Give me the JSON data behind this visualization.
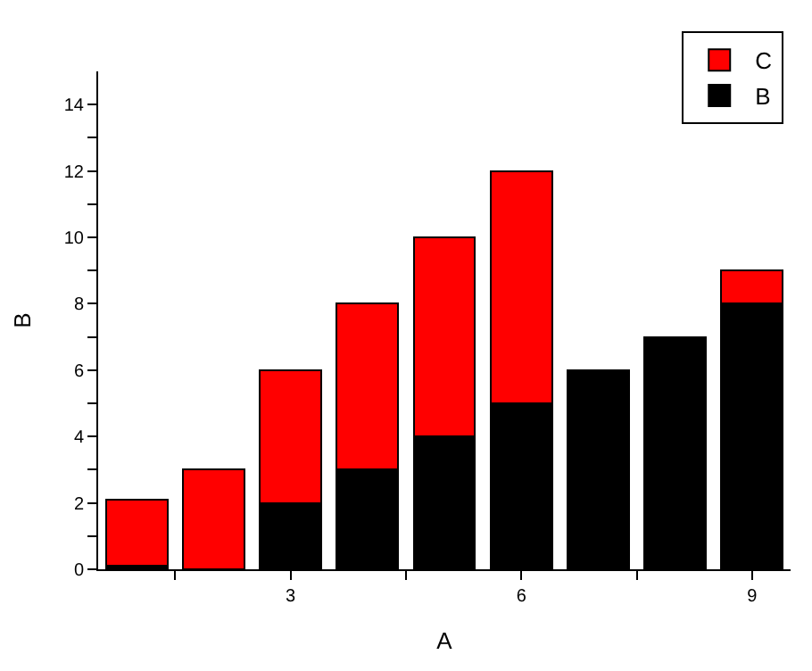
{
  "chart_data": {
    "type": "bar",
    "stacked": true,
    "xlabel": "A",
    "ylabel": "B",
    "x": [
      1,
      2,
      3,
      4,
      5,
      6,
      7,
      8,
      9
    ],
    "series": [
      {
        "name": "B",
        "color": "#000000",
        "values": [
          0.1,
          0,
          2,
          3,
          4,
          5,
          6,
          7,
          8
        ]
      },
      {
        "name": "C",
        "color": "#ff0000",
        "values": [
          2,
          3,
          4,
          5,
          6,
          7,
          null,
          null,
          1
        ]
      }
    ],
    "xlim": [
      0.5,
      9.5
    ],
    "xticks": [
      {
        "value": 1.5,
        "label": null
      },
      3,
      {
        "value": 4.5,
        "label": null
      },
      6,
      {
        "value": 7.5,
        "label": null
      },
      9
    ],
    "ylim": [
      0,
      15
    ],
    "yticks": [
      0,
      {
        "value": 1,
        "label": null
      },
      2,
      {
        "value": 3,
        "label": null
      },
      4,
      {
        "value": 5,
        "label": null
      },
      6,
      {
        "value": 7,
        "label": null
      },
      8,
      {
        "value": 9,
        "label": null
      },
      10,
      {
        "value": 11,
        "label": null
      },
      12,
      {
        "value": 13,
        "label": null
      },
      14
    ],
    "legend": "top right"
  }
}
